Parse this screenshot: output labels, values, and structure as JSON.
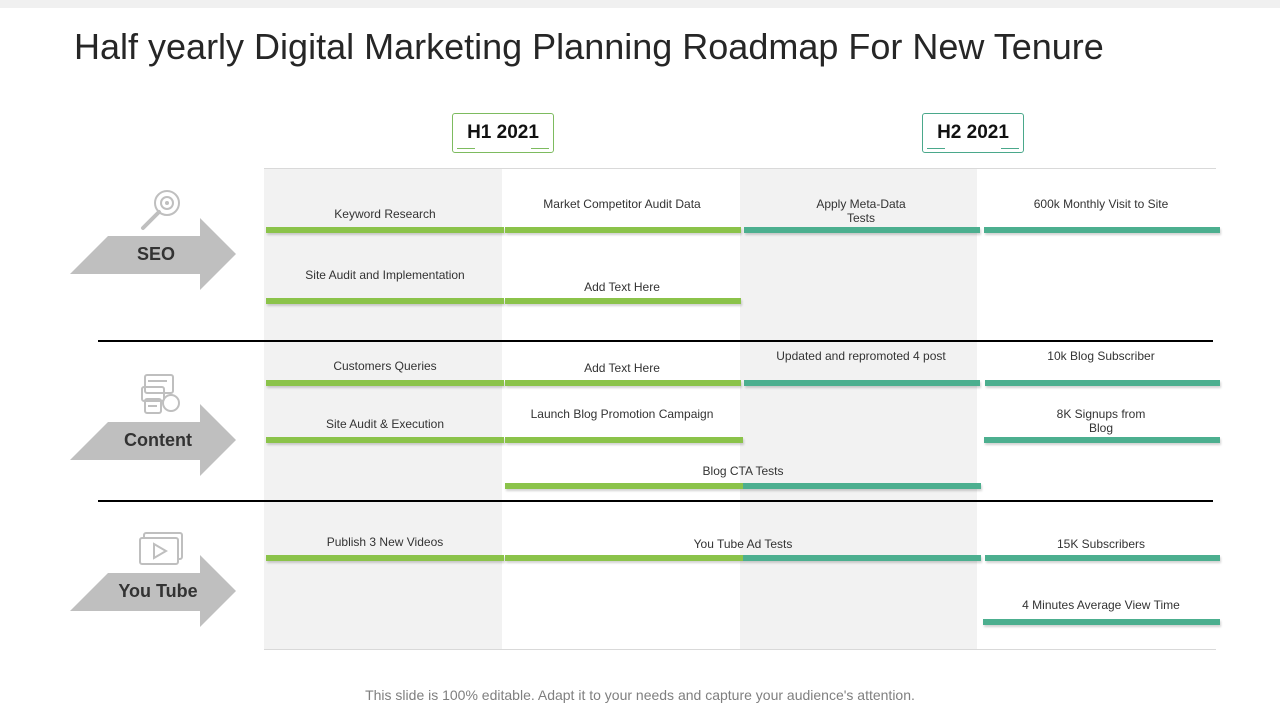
{
  "title": "Half yearly Digital Marketing Planning Roadmap For New Tenure",
  "halves": [
    {
      "label": "H1 2021"
    },
    {
      "label": "H2 2021"
    }
  ],
  "rows": [
    {
      "label": "SEO",
      "icon": "magnifier-gear-icon"
    },
    {
      "label": "Content",
      "icon": "content-documents-icon"
    },
    {
      "label": "You Tube",
      "icon": "video-player-icon"
    }
  ],
  "tasks": {
    "seo_keyword": "Keyword Research",
    "seo_competitor": "Market Competitor Audit Data",
    "seo_meta": "Apply Meta-Data\nTests",
    "seo_visit": "600k Monthly Visit to Site",
    "seo_site_audit": "Site Audit and Implementation",
    "seo_add_text": "Add Text Here",
    "content_queries": "Customers Queries",
    "content_add_text": "Add Text Here",
    "content_updated": "Updated and repromoted 4 post",
    "content_blog_sub": "10k Blog Subscriber",
    "content_site_audit": "Site Audit & Execution",
    "content_launch": "Launch Blog Promotion Campaign",
    "content_signups": "8K Signups from\nBlog",
    "content_cta": "Blog CTA Tests",
    "yt_publish": "Publish 3 New Videos",
    "yt_ad_tests": "You Tube Ad Tests",
    "yt_subscribers": "15K Subscribers",
    "yt_view_time": "4 Minutes Average View Time"
  },
  "colors": {
    "h1": "#8bc34a",
    "h2": "#4caf8f",
    "shade": "#f2f2f2",
    "arrow": "#bfbfbf"
  },
  "footer": "This slide is 100% editable. Adapt it to your needs and capture your audience's attention."
}
